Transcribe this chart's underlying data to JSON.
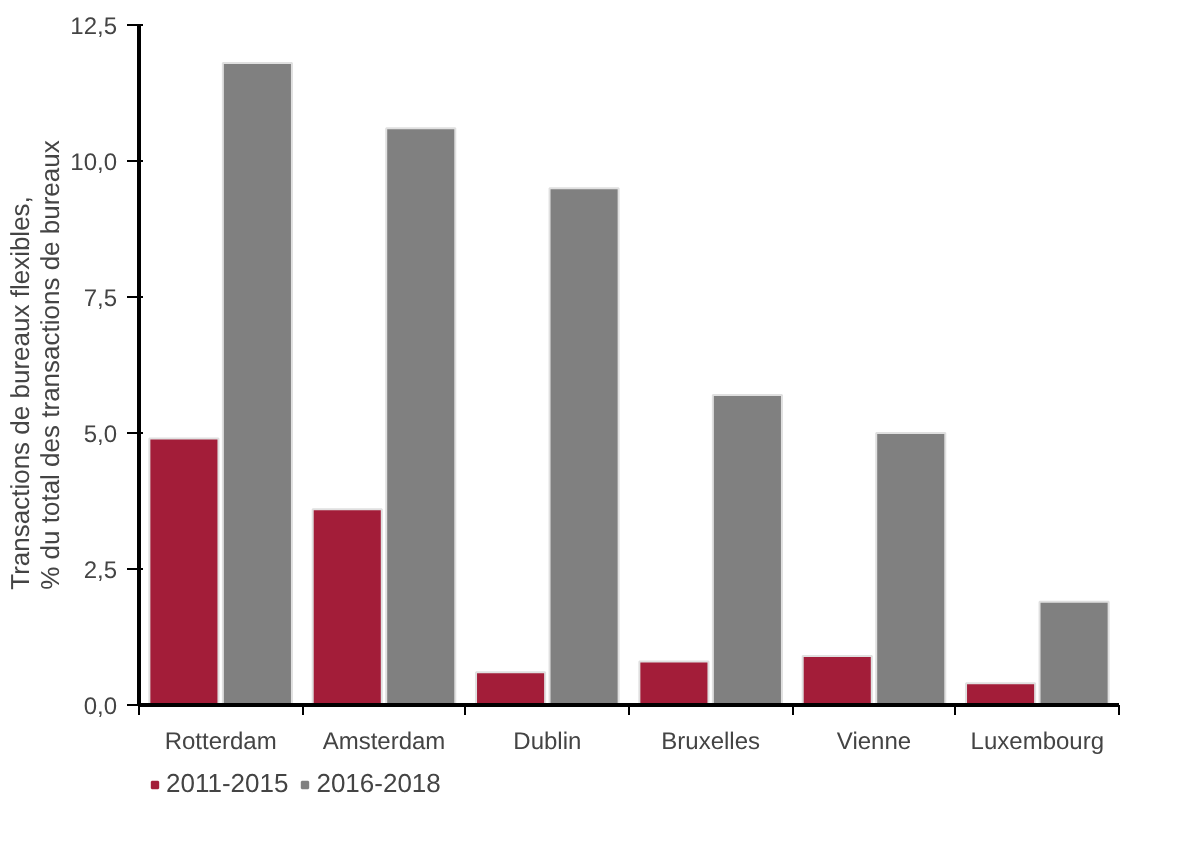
{
  "chart_data": {
    "type": "bar",
    "ylabel": "Transactions de bureaux flexibles,\n% du total des transactions de bureaux",
    "categories": [
      "Rotterdam",
      "Amsterdam",
      "Dublin",
      "Bruxelles",
      "Vienne",
      "Luxembourg"
    ],
    "series": [
      {
        "name": "2011-2015",
        "color": "#a31d39",
        "values": [
          4.9,
          3.6,
          0.6,
          0.8,
          0.9,
          0.4
        ]
      },
      {
        "name": "2016-2018",
        "color": "#808080",
        "values": [
          11.8,
          10.6,
          9.5,
          5.7,
          5.0,
          1.9
        ]
      }
    ],
    "ylim": [
      0,
      12.5
    ],
    "yticks": [
      {
        "value": 0,
        "label": "0,0"
      },
      {
        "value": 2.5,
        "label": "2,5"
      },
      {
        "value": 5,
        "label": "5,0"
      },
      {
        "value": 7.5,
        "label": "7,5"
      },
      {
        "value": 10,
        "label": "10,0"
      },
      {
        "value": 12.5,
        "label": "12,5"
      }
    ],
    "grid": false,
    "legend": "bottom left"
  }
}
